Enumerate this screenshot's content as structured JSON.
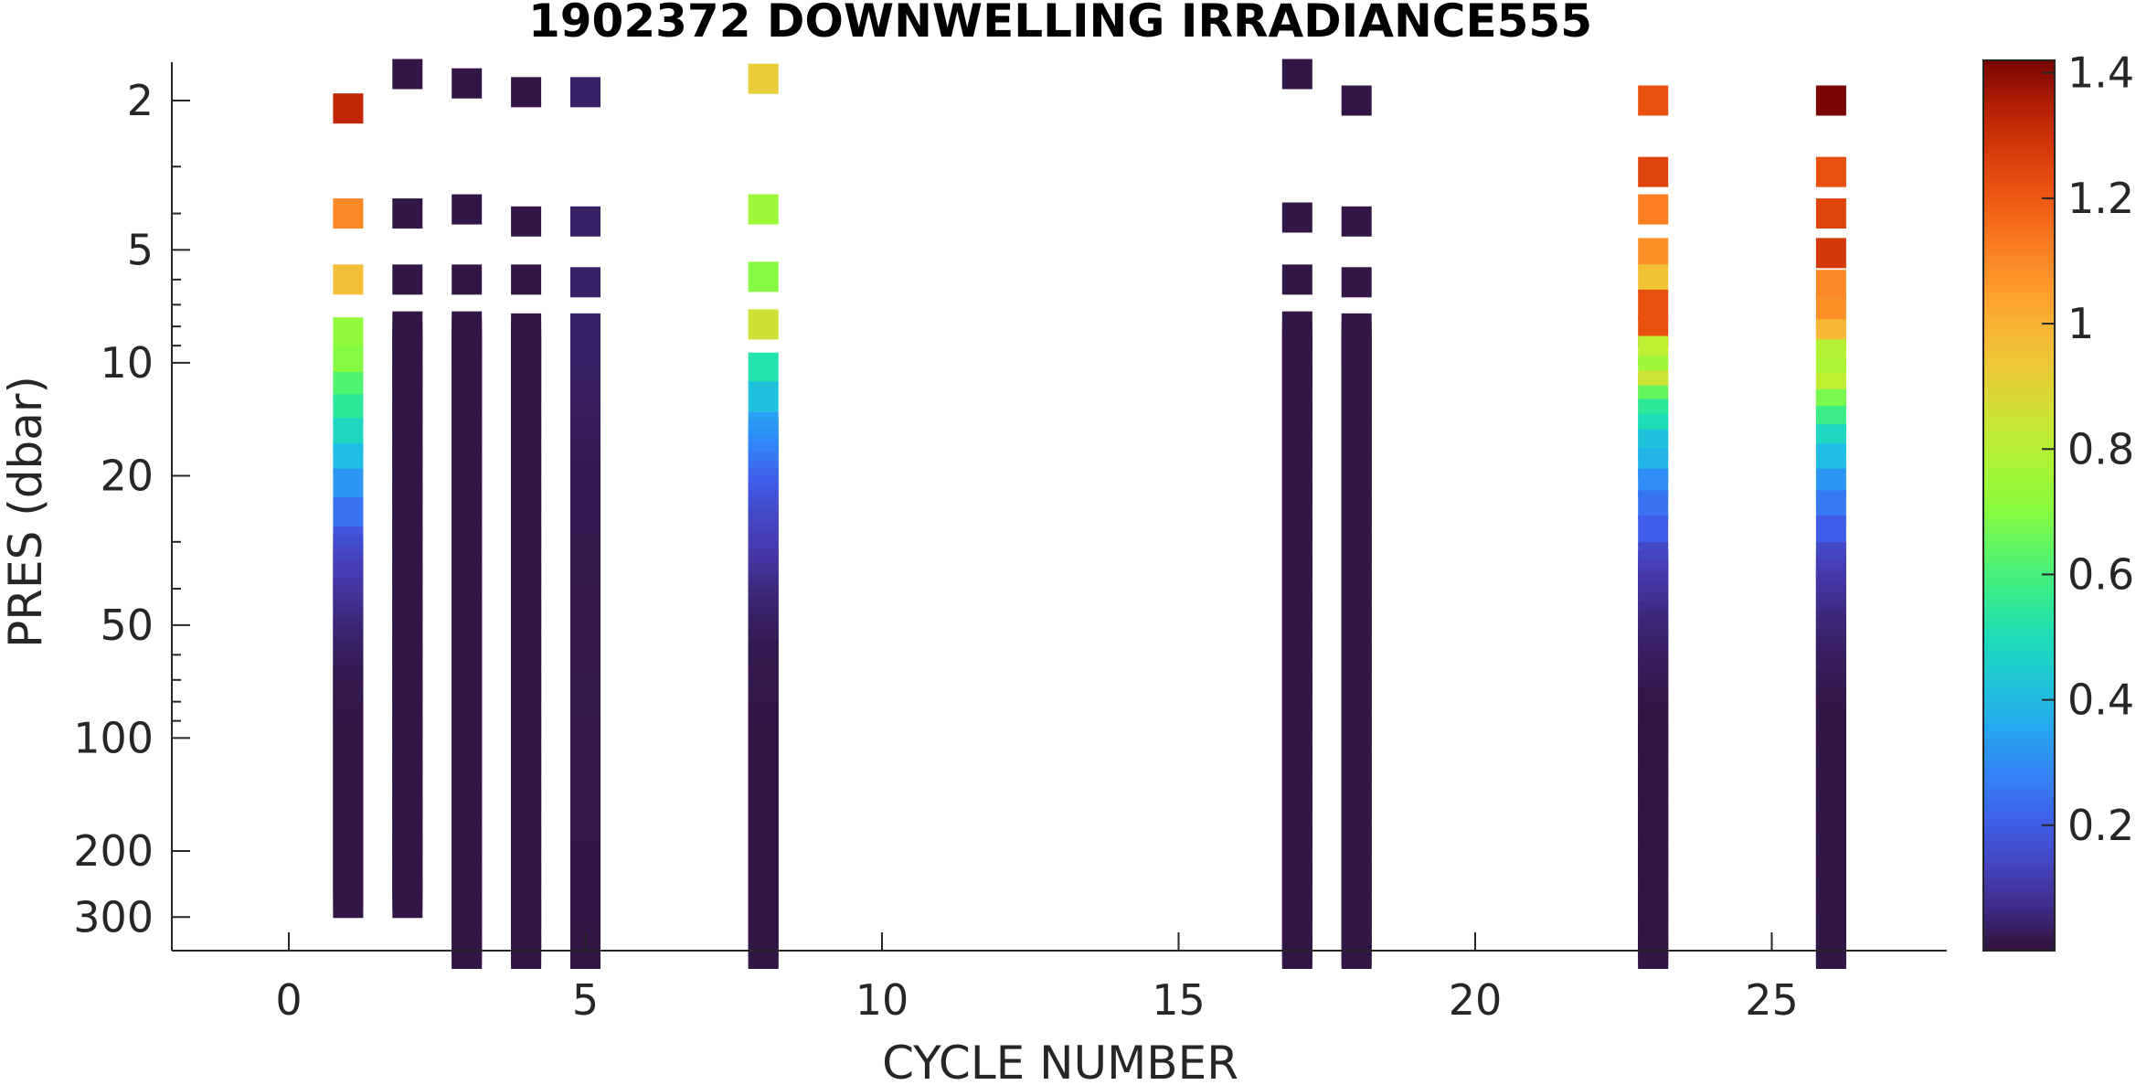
{
  "chart_data": {
    "type": "scatter",
    "title": "1902372  DOWNWELLING IRRADIANCE555",
    "xlabel": "CYCLE NUMBER",
    "ylabel": "PRES (dbar)",
    "x_ticks": [
      "0",
      "5",
      "10",
      "15",
      "20",
      "25"
    ],
    "y_ticks": [
      "2",
      "5",
      "10",
      "20",
      "50",
      "100",
      "200",
      "300"
    ],
    "colorbar_ticks": [
      "0.2",
      "0.4",
      "0.6",
      "0.8",
      "1",
      "1.2",
      "1.4"
    ],
    "xlim": [
      -2,
      28
    ],
    "ylim": [
      380,
      1.5
    ],
    "y_scale": "log",
    "y_reversed": true,
    "color_range": [
      0,
      1.42
    ],
    "colormap": "turbo",
    "grid": false,
    "profiles": [
      {
        "cycle": 1,
        "max_pres": 275,
        "points": [
          [
            2.1,
            1.33
          ],
          [
            4.0,
            1.1
          ],
          [
            6.0,
            0.96
          ],
          [
            8.3,
            0.72
          ],
          [
            9.9,
            0.7
          ],
          [
            11.6,
            0.62
          ],
          [
            13.3,
            0.55
          ],
          [
            15.4,
            0.48
          ],
          [
            18.0,
            0.4
          ],
          [
            21.0,
            0.32
          ],
          [
            25.0,
            0.25
          ],
          [
            30.0,
            0.18
          ],
          [
            37.0,
            0.12
          ],
          [
            45.0,
            0.08
          ],
          [
            55.0,
            0.05
          ],
          [
            70.0,
            0.02
          ],
          [
            100.0,
            0.01
          ],
          [
            275.0,
            0.01
          ]
        ]
      },
      {
        "cycle": 2,
        "max_pres": 275,
        "points": [
          [
            1.7,
            0.01
          ],
          [
            4.0,
            0.01
          ],
          [
            6.0,
            0.01
          ],
          [
            8.0,
            0.01
          ],
          [
            10.0,
            0.01
          ],
          [
            275.0,
            0.01
          ]
        ]
      },
      {
        "cycle": 3,
        "max_pres": 390,
        "points": [
          [
            1.8,
            0.01
          ],
          [
            3.9,
            0.01
          ],
          [
            6.0,
            0.01
          ],
          [
            8.0,
            0.01
          ],
          [
            10.3,
            0.01
          ],
          [
            390.0,
            0.01
          ]
        ]
      },
      {
        "cycle": 4,
        "max_pres": 390,
        "points": [
          [
            1.9,
            0.01
          ],
          [
            4.2,
            0.01
          ],
          [
            6.0,
            0.01
          ],
          [
            8.1,
            0.01
          ],
          [
            10.4,
            0.01
          ],
          [
            390.0,
            0.01
          ]
        ]
      },
      {
        "cycle": 5,
        "max_pres": 390,
        "points": [
          [
            1.9,
            0.04
          ],
          [
            4.2,
            0.04
          ],
          [
            6.1,
            0.04
          ],
          [
            8.1,
            0.04
          ],
          [
            10.4,
            0.04
          ],
          [
            14.0,
            0.03
          ],
          [
            20.0,
            0.02
          ],
          [
            390.0,
            0.01
          ]
        ]
      },
      {
        "cycle": 8,
        "max_pres": 390,
        "points": [
          [
            1.75,
            0.92
          ],
          [
            3.9,
            0.75
          ],
          [
            5.9,
            0.7
          ],
          [
            7.9,
            0.86
          ],
          [
            10.3,
            0.52
          ],
          [
            12.3,
            0.42
          ],
          [
            14.8,
            0.34
          ],
          [
            18.0,
            0.28
          ],
          [
            22.0,
            0.2
          ],
          [
            28.0,
            0.14
          ],
          [
            36.0,
            0.09
          ],
          [
            46.0,
            0.05
          ],
          [
            60.0,
            0.02
          ],
          [
            100.0,
            0.01
          ],
          [
            390.0,
            0.01
          ]
        ]
      },
      {
        "cycle": 17,
        "max_pres": 390,
        "points": [
          [
            1.7,
            0.01
          ],
          [
            4.1,
            0.01
          ],
          [
            6.0,
            0.01
          ],
          [
            8.0,
            0.01
          ],
          [
            10.0,
            0.01
          ],
          [
            390.0,
            0.01
          ]
        ]
      },
      {
        "cycle": 18,
        "max_pres": 390,
        "points": [
          [
            2.0,
            0.01
          ],
          [
            4.2,
            0.01
          ],
          [
            6.1,
            0.01
          ],
          [
            8.1,
            0.01
          ],
          [
            10.3,
            0.01
          ],
          [
            12.8,
            0.01
          ],
          [
            390.0,
            0.01
          ]
        ]
      },
      {
        "cycle": 23,
        "max_pres": 390,
        "points": [
          [
            2.0,
            1.22
          ],
          [
            3.1,
            1.25
          ],
          [
            3.9,
            1.12
          ],
          [
            5.1,
            1.08
          ],
          [
            6.0,
            0.95
          ],
          [
            7.0,
            1.22
          ],
          [
            8.3,
            1.22
          ],
          [
            9.3,
            0.82
          ],
          [
            10.5,
            0.75
          ],
          [
            11.5,
            0.85
          ],
          [
            12.6,
            0.65
          ],
          [
            13.7,
            0.55
          ],
          [
            15.0,
            0.5
          ],
          [
            16.5,
            0.42
          ],
          [
            18.5,
            0.38
          ],
          [
            21.0,
            0.3
          ],
          [
            24.0,
            0.25
          ],
          [
            28.0,
            0.2
          ],
          [
            33.0,
            0.15
          ],
          [
            40.0,
            0.1
          ],
          [
            50.0,
            0.06
          ],
          [
            65.0,
            0.03
          ],
          [
            90.0,
            0.01
          ],
          [
            390.0,
            0.01
          ]
        ]
      },
      {
        "cycle": 26,
        "max_pres": 390,
        "points": [
          [
            2.0,
            1.42
          ],
          [
            3.1,
            1.22
          ],
          [
            4.0,
            1.25
          ],
          [
            5.1,
            1.28
          ],
          [
            6.2,
            1.1
          ],
          [
            7.3,
            1.08
          ],
          [
            8.4,
            0.98
          ],
          [
            9.5,
            0.8
          ],
          [
            10.6,
            0.78
          ],
          [
            11.7,
            0.82
          ],
          [
            12.9,
            0.68
          ],
          [
            14.3,
            0.58
          ],
          [
            16.0,
            0.48
          ],
          [
            18.0,
            0.4
          ],
          [
            21.0,
            0.32
          ],
          [
            24.0,
            0.26
          ],
          [
            28.0,
            0.2
          ],
          [
            33.0,
            0.15
          ],
          [
            40.0,
            0.1
          ],
          [
            50.0,
            0.06
          ],
          [
            65.0,
            0.03
          ],
          [
            90.0,
            0.01
          ],
          [
            390.0,
            0.01
          ]
        ]
      }
    ]
  }
}
